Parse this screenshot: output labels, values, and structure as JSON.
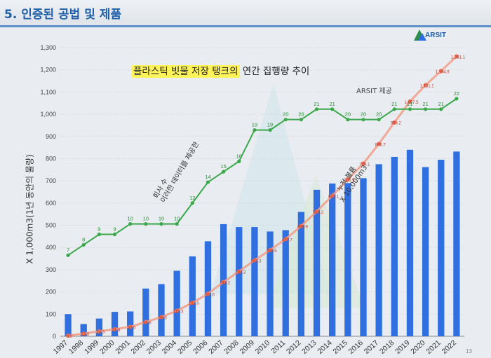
{
  "slide": {
    "title": "5. 인증된 공법 및 제품",
    "logo_text": "ARSIT",
    "page_number": "13"
  },
  "chart_data": {
    "type": "bar",
    "title_highlight": "플라스틱 빗물 저장 탱크의",
    "title_rest": " 연간 집행량 추이",
    "source_note": "ARSIT 제공",
    "ylabel": "X 1,000m3(1년 동안의 물량)",
    "ylim": [
      0,
      1300
    ],
    "yticks": [
      "0",
      "100",
      "200",
      "300",
      "400",
      "500",
      "600",
      "700",
      "800",
      "900",
      "1,000",
      "1,100",
      "1,200",
      "1,300"
    ],
    "grid": true,
    "categories": [
      "1997",
      "1998",
      "1999",
      "2000",
      "2001",
      "2002",
      "2003",
      "2004",
      "2005",
      "2006",
      "2007",
      "2008",
      "2009",
      "2010",
      "2011",
      "2012",
      "2013",
      "2014",
      "2015",
      "2016",
      "2017",
      "2018",
      "2019",
      "2020",
      "2021",
      "2022"
    ],
    "series": [
      {
        "kind": "bar",
        "color": "#2f6fe0",
        "values": [
          100,
          55,
          80,
          110,
          112,
          215,
          235,
          295,
          360,
          428,
          505,
          492,
          492,
          472,
          478,
          560,
          660,
          688,
          690,
          712,
          775,
          808,
          840,
          762,
          795,
          832
        ]
      },
      {
        "kind": "line",
        "color": "#f29b86",
        "values": [
          3.0,
          12.0,
          22.3,
          31.9,
          42.5,
          64.6,
          86.3,
          115.3,
          151.0,
          191.6,
          244.2,
          292.3,
          342.3,
          388.5,
          437.7,
          496.6,
          562.2,
          633.1,
          706.5,
          778.1,
          866.7,
          963.2,
          1057.5,
          1131.1,
          1194.9,
          1261.1
        ],
        "labels": [
          "3.0",
          "12.0",
          "22.3",
          "31.9",
          "42.5",
          "64.6",
          "86.3",
          "115.3",
          "151.0",
          "191.6",
          "244.2",
          "292.3",
          "342.3",
          "388.5",
          "437.7",
          "496.6",
          "562.2",
          "633.1",
          "706.5",
          "778.1",
          "866.7",
          "963.2",
          "1,057.5",
          "1,131.1",
          "1,194.9",
          "1,261.1"
        ]
      },
      {
        "kind": "line",
        "color": "#3aa84a",
        "values": [
          7,
          8,
          9,
          9,
          10,
          10,
          10,
          10,
          12,
          14,
          15,
          16,
          19,
          19,
          20,
          20,
          21,
          21,
          20,
          20,
          20,
          21,
          21,
          21,
          21,
          22
        ],
        "labels": [
          "7",
          "8",
          "9",
          "9",
          "10",
          "10",
          "10",
          "10",
          "12",
          "14",
          "15",
          "16",
          "19",
          "19",
          "20",
          "20",
          "21",
          "21",
          "20",
          "20",
          "20",
          "21",
          "21",
          "21",
          "21",
          "22"
        ],
        "scale_note": "green series plotted on secondary scale"
      }
    ],
    "annotations": [
      {
        "lines": [
          "회사 수",
          "이러한 데이터를 제공한"
        ]
      },
      {
        "lines": [
          "누적 볼륨",
          "X 10,000m3"
        ]
      }
    ]
  }
}
